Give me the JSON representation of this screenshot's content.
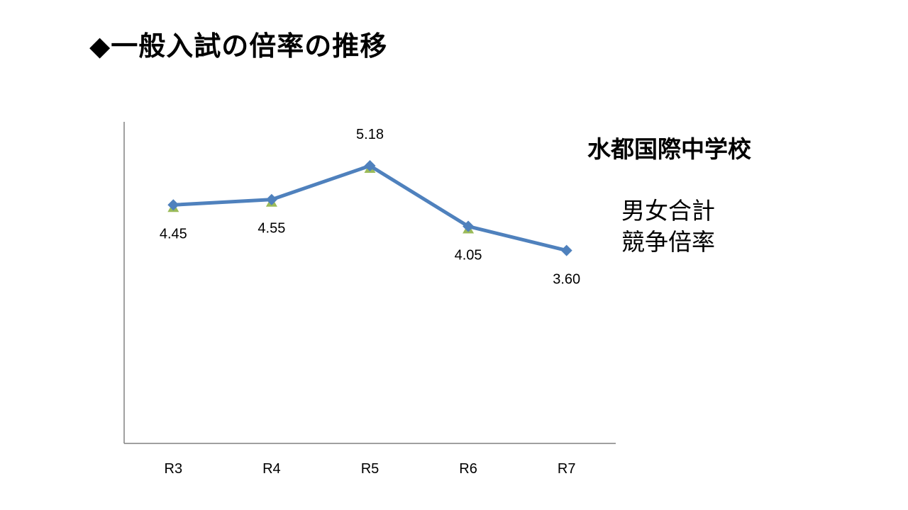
{
  "slide": {
    "title": "◆一般入試の倍率の推移",
    "school_name": "水都国際中学校",
    "ratio_label_line1": "男女合計",
    "ratio_label_line2": "競争倍率"
  },
  "chart_data": {
    "type": "line",
    "categories": [
      "R3",
      "R4",
      "R5",
      "R6",
      "R7"
    ],
    "series": [
      {
        "values": [
          4.45,
          4.55,
          5.18,
          4.05,
          3.6
        ],
        "color": "#4f81bd",
        "marker": "diamond"
      }
    ],
    "secondary_markers": {
      "values": [
        4.45,
        4.55,
        5.18,
        4.05,
        null
      ],
      "color": "#9bbb59",
      "marker": "triangle"
    },
    "data_labels": [
      "4.45",
      "4.55",
      "5.18",
      "4.05",
      "3.60"
    ],
    "ylim": [
      0,
      6
    ],
    "grid": false,
    "show_y_axis_labels": false
  }
}
